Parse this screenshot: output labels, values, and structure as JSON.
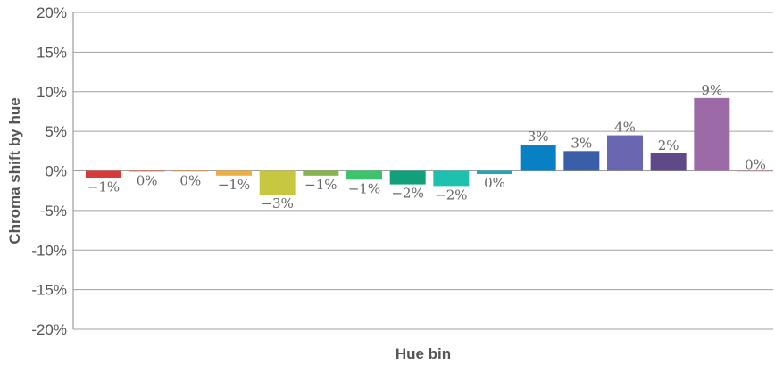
{
  "chart_data": {
    "type": "bar",
    "xlabel": "Hue bin",
    "ylabel": "Chroma shift by hue",
    "ylim": [
      -20,
      20
    ],
    "yticks": [
      20,
      15,
      10,
      5,
      0,
      -5,
      -10,
      -15,
      -20
    ],
    "ytick_labels": [
      "20%",
      "15%",
      "10%",
      "5%",
      "0%",
      "-5%",
      "-10%",
      "-15%",
      "-20%"
    ],
    "grid": true,
    "bars": [
      {
        "value": -0.9,
        "label": "−1%",
        "color": "#d83a3a"
      },
      {
        "value": -0.1,
        "label": "0%",
        "color": "#e0643c"
      },
      {
        "value": -0.1,
        "label": "0%",
        "color": "#e89a3c"
      },
      {
        "value": -0.6,
        "label": "−1%",
        "color": "#ecb040"
      },
      {
        "value": -3.0,
        "label": "−3%",
        "color": "#c8c840"
      },
      {
        "value": -0.6,
        "label": "−1%",
        "color": "#84b44a"
      },
      {
        "value": -1.1,
        "label": "−1%",
        "color": "#3cc46c"
      },
      {
        "value": -1.7,
        "label": "−2%",
        "color": "#12a07a"
      },
      {
        "value": -1.9,
        "label": "−2%",
        "color": "#1ec0b0"
      },
      {
        "value": -0.4,
        "label": "0%",
        "color": "#24a6b6"
      },
      {
        "value": 3.3,
        "label": "3%",
        "color": "#0a80c4"
      },
      {
        "value": 2.5,
        "label": "3%",
        "color": "#3a5ea8"
      },
      {
        "value": 4.5,
        "label": "4%",
        "color": "#6a66b0"
      },
      {
        "value": 2.2,
        "label": "2%",
        "color": "#5e4a88"
      },
      {
        "value": 9.2,
        "label": "9%",
        "color": "#9c6aa6"
      },
      {
        "value": 0.0,
        "label": "0%",
        "color": "#c4849c"
      }
    ]
  }
}
